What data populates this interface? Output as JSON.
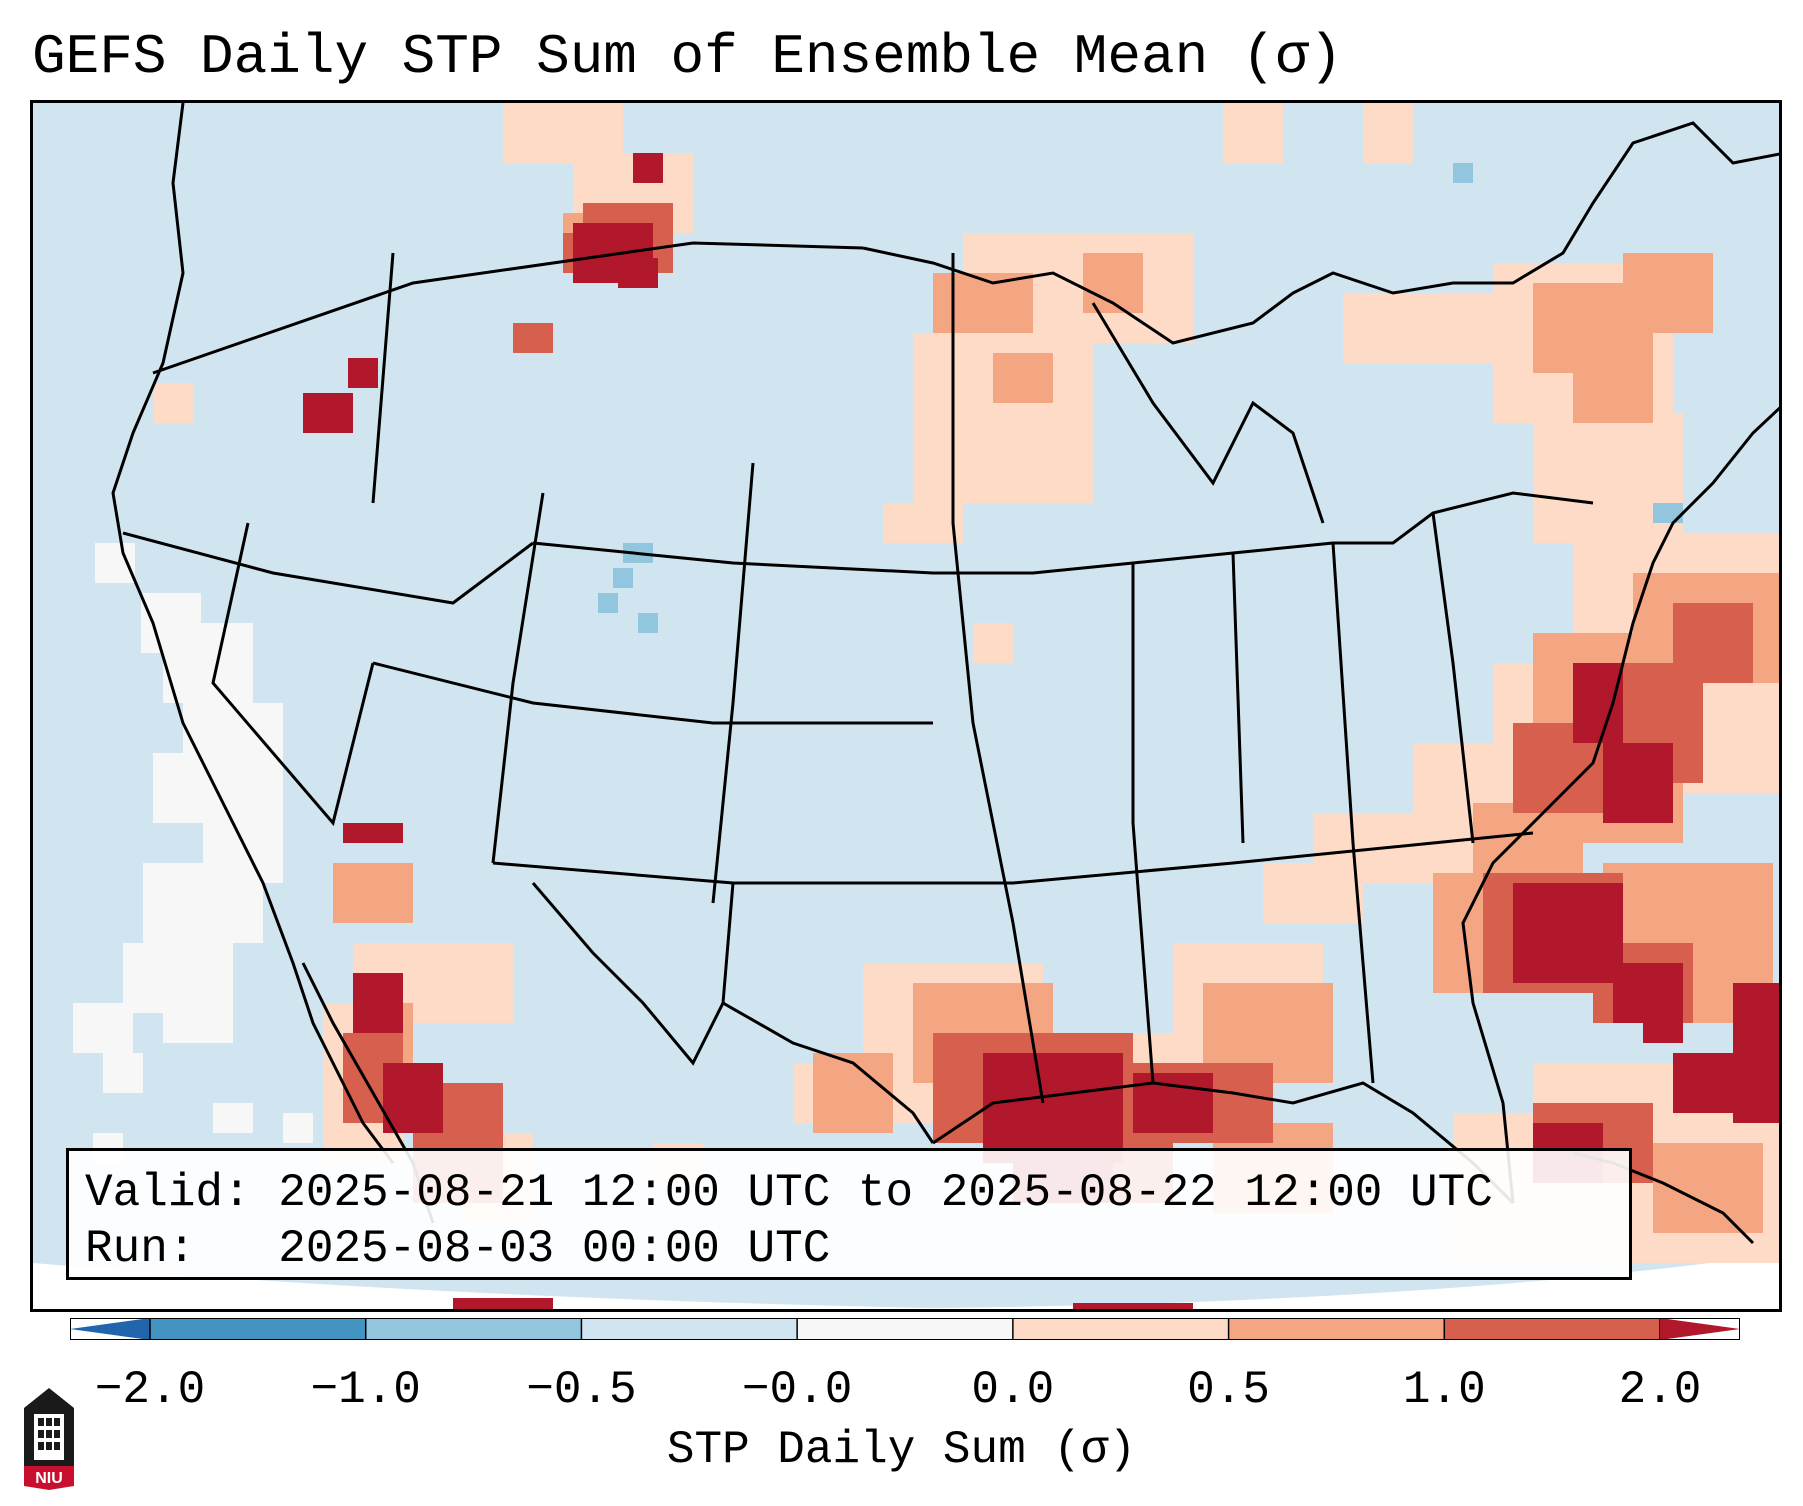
{
  "title": "GEFS Daily STP Sum of Ensemble Mean (σ)",
  "info": {
    "valid": "Valid: 2025-08-21 12:00 UTC to 2025-08-22 12:00 UTC",
    "run": "Run:   2025-08-03 00:00 UTC"
  },
  "colorbar": {
    "label": "STP Daily Sum (σ)",
    "ticks": [
      "−2.0",
      "−1.0",
      "−0.5",
      "−0.0",
      "0.0",
      "0.5",
      "1.0",
      "2.0"
    ],
    "colors": [
      "#4393c3",
      "#92c5de",
      "#d1e5f0",
      "#f7f7f7",
      "#fddbc7",
      "#f4a582",
      "#d6604d",
      "#b2182b"
    ],
    "extend_low_color": "#2166ac",
    "extend_high_color": "#b2182b"
  },
  "map": {
    "background_value_color": "#d1e5f0",
    "region": "Continental United States",
    "hotspots": [
      {
        "area": "Gulf of Mexico and Gulf Coast",
        "level": "> 1.0"
      },
      {
        "area": "Atlantic off Southeast coast",
        "level": "> 1.0"
      },
      {
        "area": "Western Bahamas",
        "level": "> 1.0"
      },
      {
        "area": "Montana / Alberta border",
        "level": "> 1.0"
      },
      {
        "area": "Western Mexico / Sinaloa",
        "level": "> 1.0"
      },
      {
        "area": "Northern Plains / Minnesota",
        "level": "0.0 to 1.0"
      },
      {
        "area": "Northeast US / New England",
        "level": "0.0 to 1.0"
      }
    ]
  },
  "logo": {
    "text": "NIU",
    "color": "#c8102e"
  }
}
